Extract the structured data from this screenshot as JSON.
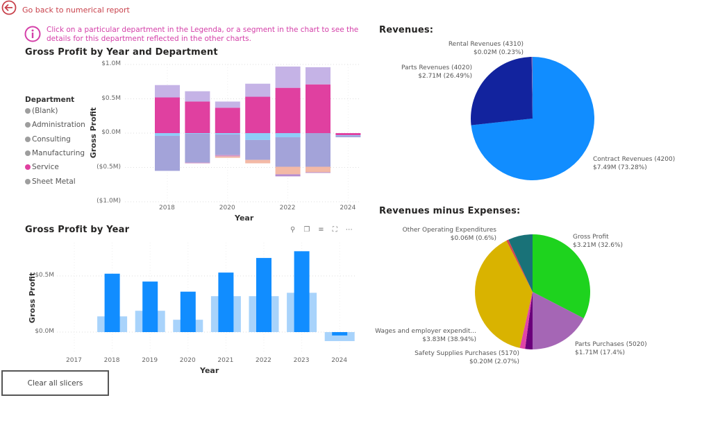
{
  "header": {
    "back_label": "Go back to numerical report"
  },
  "info": {
    "text": "Click on a particular department in the Legenda, or a segment in the chart to see the details for this department reflected in the other charts."
  },
  "legend": {
    "title": "Department",
    "items": [
      {
        "label": "(Blank)",
        "color": "#9e9e9e"
      },
      {
        "label": "Administration",
        "color": "#9e9e9e"
      },
      {
        "label": "Consulting",
        "color": "#9e9e9e"
      },
      {
        "label": "Manufacturing",
        "color": "#9e9e9e"
      },
      {
        "label": "Service",
        "color": "#e040a0"
      },
      {
        "label": "Sheet Metal",
        "color": "#9e9e9e"
      }
    ]
  },
  "visual_header_icons": [
    "pin-icon",
    "copy-icon",
    "filter-icon",
    "focus-mode-icon",
    "more-options-icon"
  ],
  "clear_button": "Clear all slicers",
  "chart_data": [
    {
      "type": "bar",
      "stacked": true,
      "title": "Gross Profit by Year and Department",
      "xlabel": "Year",
      "ylabel": "Gross Profit",
      "ylim": [
        -1.0,
        1.0
      ],
      "yticks": [
        "$1.0M",
        "$0.5M",
        "$0.0M",
        "($0.5M)",
        "($1.0M)"
      ],
      "xticks": [
        "2018",
        "2020",
        "2022",
        "2024"
      ],
      "categories": [
        2018,
        2019,
        2020,
        2021,
        2022,
        2023,
        2024
      ],
      "grid": true,
      "series": [
        {
          "color": "#e040a0",
          "values": [
            0.52,
            0.46,
            0.37,
            0.53,
            0.66,
            0.71,
            -0.03
          ]
        },
        {
          "color": "#c5b3e6",
          "values": [
            0.18,
            0.15,
            0.09,
            0.19,
            0.31,
            0.25,
            0
          ]
        },
        {
          "color": "#8fcdf7",
          "values": [
            -0.04,
            -0.01,
            -0.02,
            -0.1,
            -0.06,
            0,
            -0.01
          ]
        },
        {
          "color": "#a3a3d9",
          "values": [
            -0.51,
            -0.42,
            -0.3,
            -0.29,
            -0.43,
            -0.49,
            -0.02
          ]
        },
        {
          "color": "#d692c5",
          "values": [
            0,
            -0.01,
            -0.02,
            0,
            0,
            0,
            0
          ]
        },
        {
          "color": "#f3b9a6",
          "values": [
            0,
            0,
            -0.02,
            -0.05,
            -0.11,
            -0.08,
            0
          ]
        },
        {
          "color": "#b58ccf",
          "values": [
            0,
            0,
            0,
            0,
            -0.03,
            -0.01,
            0
          ]
        }
      ]
    },
    {
      "type": "bar",
      "title": "Gross Profit by Year",
      "xlabel": "Year",
      "ylabel": "Gross Profit",
      "yticks": [
        "$0.5M",
        "$0.0M"
      ],
      "categories": [
        2017,
        2018,
        2019,
        2020,
        2021,
        2022,
        2023,
        2024
      ],
      "grid": true,
      "series": [
        {
          "color": "#a8d3fb",
          "values": [
            null,
            0.14,
            0.19,
            0.11,
            0.32,
            0.32,
            0.35,
            -0.08
          ]
        },
        {
          "color": "#118dff",
          "values": [
            null,
            0.52,
            0.45,
            0.36,
            0.53,
            0.66,
            0.72,
            -0.03
          ]
        }
      ]
    },
    {
      "type": "pie",
      "title": "Revenues:",
      "slices": [
        {
          "name": "Contract Revenues (4200)",
          "value_label": "$7.49M (73.28%)",
          "percent": 73.28,
          "color": "#118dff"
        },
        {
          "name": "Parts Revenues (4020)",
          "value_label": "$2.71M (26.49%)",
          "percent": 26.49,
          "color": "#12239e"
        },
        {
          "name": "Rental Revenues (4310)",
          "value_label": "$0.02M (0.23%)",
          "percent": 0.23,
          "color": "#8a6fb8"
        }
      ]
    },
    {
      "type": "pie",
      "title": "Revenues minus Expenses:",
      "slices": [
        {
          "name": "Gross Profit",
          "value_label": "$3.21M (32.6%)",
          "percent": 32.6,
          "color": "#1ed31e"
        },
        {
          "name": "Parts Purchases (5020)",
          "value_label": "$1.71M (17.4%)",
          "percent": 17.4,
          "color": "#a566b5"
        },
        {
          "name": "Safety Supplies Purchases (5170)",
          "value_label": "$0.20M (2.07%)",
          "percent": 2.07,
          "color": "#6b007b"
        },
        {
          "percent": 1.5,
          "color": "#e044a7"
        },
        {
          "name": "Wages and employer expendit...",
          "value_label": "$3.83M (38.94%)",
          "percent": 38.94,
          "color": "#d9b300"
        },
        {
          "name": "Other Operating Expenditures",
          "value_label": "$0.06M (0.6%)",
          "percent": 0.6,
          "color": "#d64550"
        },
        {
          "percent": 6.89,
          "color": "#197278"
        }
      ]
    }
  ]
}
